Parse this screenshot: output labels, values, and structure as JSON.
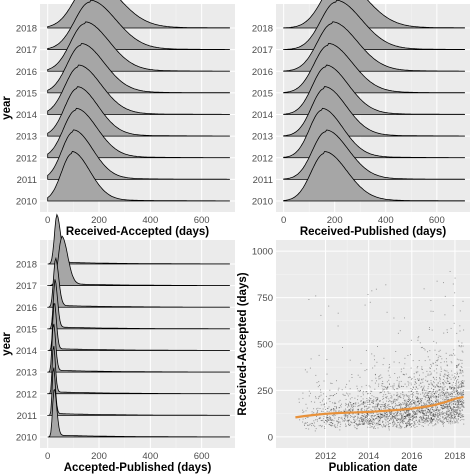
{
  "chart_data": [
    {
      "type": "ridgeline",
      "xlabel": "Received-Accepted (days)",
      "ylabel": "year",
      "xlim": [
        -30,
        730
      ],
      "xticks": [
        0,
        200,
        400,
        600
      ],
      "years": [
        "2010",
        "2011",
        "2012",
        "2013",
        "2014",
        "2015",
        "2016",
        "2017",
        "2018"
      ],
      "peak_days": [
        95,
        100,
        110,
        115,
        120,
        130,
        145,
        165,
        170
      ],
      "spread_days": [
        55,
        60,
        65,
        65,
        70,
        72,
        75,
        80,
        85
      ],
      "fill": "#a6a6a6"
    },
    {
      "type": "ridgeline",
      "xlabel": "Received-Published (days)",
      "ylabel": "",
      "xlim": [
        -30,
        730
      ],
      "xticks": [
        0,
        200,
        400,
        600
      ],
      "years": [
        "2010",
        "2011",
        "2012",
        "2013",
        "2014",
        "2015",
        "2016",
        "2017",
        "2018"
      ],
      "peak_days": [
        160,
        165,
        150,
        160,
        165,
        175,
        190,
        205,
        215
      ],
      "spread_days": [
        70,
        70,
        65,
        68,
        70,
        75,
        78,
        80,
        85
      ],
      "fill": "#a6a6a6"
    },
    {
      "type": "ridgeline",
      "xlabel": "Accepted-Published (days)",
      "ylabel": "year",
      "xlim": [
        -30,
        730
      ],
      "xticks": [
        0,
        200,
        400,
        600
      ],
      "years": [
        "2010",
        "2011",
        "2012",
        "2013",
        "2014",
        "2015",
        "2016",
        "2017",
        "2018"
      ],
      "peak_days": [
        25,
        22,
        22,
        22,
        25,
        28,
        30,
        55,
        35
      ],
      "spread_days": [
        8,
        6,
        6,
        7,
        7,
        8,
        10,
        18,
        12
      ],
      "fill": "#a6a6a6"
    },
    {
      "type": "scatter",
      "xlabel": "Publication date",
      "ylabel": "Received-Accepted (days)",
      "xlim": [
        2009.7,
        2018.7
      ],
      "ylim": [
        -60,
        1060
      ],
      "xticks": [
        2012,
        2014,
        2016,
        2018
      ],
      "yticks": [
        0,
        250,
        500,
        750,
        1000
      ],
      "points_color": "#000000",
      "trend_color": "#e8913a",
      "trend": {
        "x": [
          2010.6,
          2011.0,
          2011.5,
          2012.0,
          2012.5,
          2013.0,
          2013.5,
          2014.0,
          2014.5,
          2015.0,
          2015.5,
          2016.0,
          2016.5,
          2017.0,
          2017.5,
          2018.0,
          2018.4
        ],
        "y": [
          105,
          112,
          118,
          124,
          128,
          130,
          132,
          134,
          138,
          142,
          146,
          152,
          160,
          170,
          185,
          205,
          215
        ]
      }
    }
  ]
}
